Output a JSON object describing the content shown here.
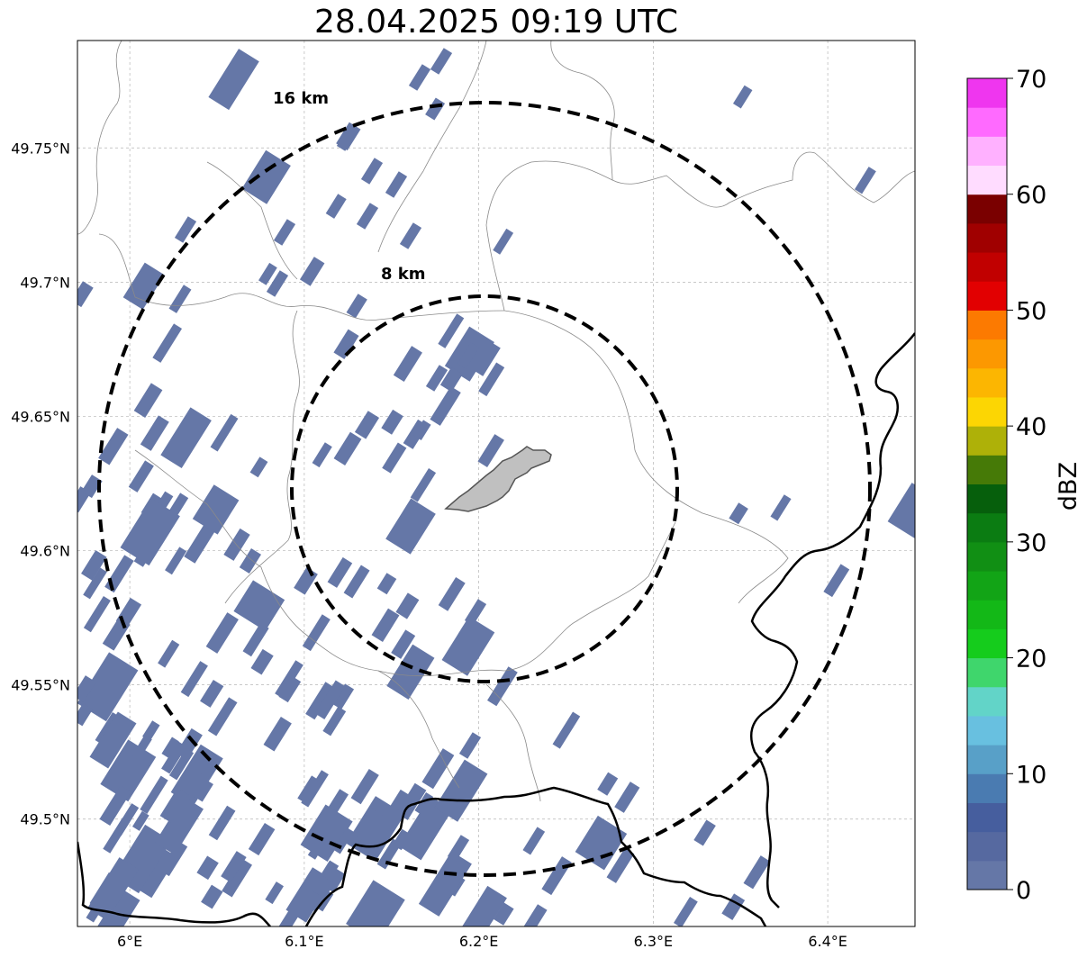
{
  "title": "28.04.2025 09:19 UTC",
  "map": {
    "lon_range": [
      5.97,
      6.45
    ],
    "lat_range": [
      49.46,
      49.79
    ],
    "grid": true,
    "x_ticks": [
      {
        "value": 6.0,
        "label": "6°E"
      },
      {
        "value": 6.1,
        "label": "6.1°E"
      },
      {
        "value": 6.2,
        "label": "6.2°E"
      },
      {
        "value": 6.3,
        "label": "6.3°E"
      },
      {
        "value": 6.4,
        "label": "6.4°E"
      }
    ],
    "y_ticks": [
      {
        "value": 49.5,
        "label": "49.5°N"
      },
      {
        "value": 49.55,
        "label": "49.55°N"
      },
      {
        "value": 49.6,
        "label": "49.6°N"
      },
      {
        "value": 49.65,
        "label": "49.65°N"
      },
      {
        "value": 49.7,
        "label": "49.7°N"
      },
      {
        "value": 49.75,
        "label": "49.75°N"
      }
    ]
  },
  "range_rings": [
    {
      "label": "16 km",
      "radius_km": 16
    },
    {
      "label": "8 km",
      "radius_km": 8
    }
  ],
  "colorbar": {
    "label": "dBZ",
    "tick_labels": [
      "0",
      "10",
      "20",
      "30",
      "40",
      "50",
      "60",
      "70"
    ],
    "colors": [
      "#6577a7",
      "#5669a0",
      "#465e9e",
      "#4a7bb1",
      "#58a0c8",
      "#68c0e0",
      "#62d4c8",
      "#3fd66c",
      "#15cc1c",
      "#13b817",
      "#12a416",
      "#118f14",
      "#0b7c12",
      "#065f0c",
      "#467a07",
      "#aeb108",
      "#fcd603",
      "#fcb601",
      "#fc9801",
      "#fc7a01",
      "#e20001",
      "#c10000",
      "#a00000",
      "#7a0000",
      "#ffdcff",
      "#ffb1ff",
      "#ff6aff",
      "#ef36ef"
    ]
  },
  "colors": {
    "echo": "#6577a7",
    "target_fill": "#c0c0c0",
    "border": "#000000"
  }
}
